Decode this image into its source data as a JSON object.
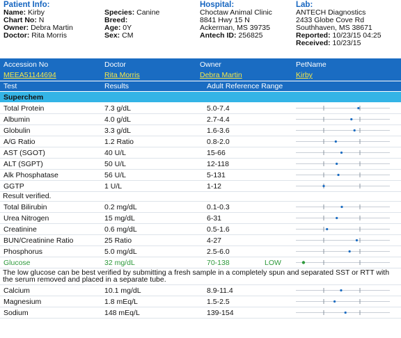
{
  "header": {
    "patient": {
      "title": "Patient Info:",
      "fields": [
        {
          "label": "Name:",
          "value": "Kirby"
        },
        {
          "label": "Chart No:",
          "value": "N"
        },
        {
          "label": "Owner:",
          "value": "Debra Martin"
        },
        {
          "label": "Doctor:",
          "value": "Rita Morris"
        }
      ]
    },
    "animal": {
      "fields": [
        {
          "label": "Species:",
          "value": "Canine"
        },
        {
          "label": "Breed:"
        },
        {
          "label": "Age:",
          "value": "0Y"
        },
        {
          "label": "Sex:",
          "value": "CM"
        }
      ]
    },
    "hospital": {
      "title": "Hospital:",
      "lines": [
        "Choctaw Animal Clinic",
        "8841 Hwy 15 N",
        "Ackerman, MS 39735"
      ],
      "fields": [
        {
          "label": "Antech ID:",
          "value": "256825"
        }
      ]
    },
    "lab": {
      "title": "Lab:",
      "lines": [
        "ANTECH Diagnostics",
        "2433 Globe Cove Rd",
        "Southhaven, MS 38671"
      ],
      "fields": [
        {
          "label": "Reported:",
          "value": "10/23/15 04:25"
        },
        {
          "label": "Received:",
          "value": "10/23/15"
        }
      ]
    }
  },
  "accession": {
    "columns": [
      "Accession No",
      "Doctor",
      "Owner",
      "PetName"
    ],
    "values": [
      "MEEA51144694",
      "Rita Morris",
      "Debra Martin",
      "Kirby"
    ]
  },
  "table": {
    "columns": [
      "Test",
      "Results",
      "Adult Reference Range"
    ],
    "section": "Superchem",
    "rows": [
      {
        "test": "Total Protein",
        "result": "7.3 g/dL",
        "range": "5.0-7.4"
      },
      {
        "test": "Albumin",
        "result": "4.0 g/dL",
        "range": "2.7-4.4"
      },
      {
        "test": "Globulin",
        "result": "3.3 g/dL",
        "range": "1.6-3.6"
      },
      {
        "test": "A/G Ratio",
        "result": "1.2 Ratio",
        "range": "0.8-2.0"
      },
      {
        "test": "AST (SGOT)",
        "result": "40 U/L",
        "range": "15-66"
      },
      {
        "test": "ALT (SGPT)",
        "result": "50 U/L",
        "range": "12-118"
      },
      {
        "test": "Alk Phosphatase",
        "result": "56 U/L",
        "range": "5-131"
      },
      {
        "test": "GGTP",
        "result": "1 U/L",
        "range": "1-12"
      },
      {
        "note": "Result verified."
      },
      {
        "test": "Total Bilirubin",
        "result": "0.2 mg/dL",
        "range": "0.1-0.3"
      },
      {
        "test": "Urea Nitrogen",
        "result": "15 mg/dL",
        "range": "6-31"
      },
      {
        "test": "Creatinine",
        "result": "0.6 mg/dL",
        "range": "0.5-1.6"
      },
      {
        "test": "BUN/Creatinine Ratio",
        "result": "25 Ratio",
        "range": "4-27"
      },
      {
        "test": "Phosphorus",
        "result": "5.0 mg/dL",
        "range": "2.5-6.0"
      },
      {
        "test": "Glucose",
        "result": "32 mg/dL",
        "range": "70-138",
        "flag": "LOW"
      },
      {
        "note": "The low glucose can be best verified by submitting a fresh sample in a completely spun and separated SST or RTT with the serum removed and placed in a separate tube."
      },
      {
        "test": "Calcium",
        "result": "10.1 mg/dL",
        "range": "8.9-11.4"
      },
      {
        "test": "Magnesium",
        "result": "1.8 mEq/L",
        "range": "1.5-2.5"
      },
      {
        "test": "Sodium",
        "result": "148 mEq/L",
        "range": "139-154"
      }
    ]
  }
}
